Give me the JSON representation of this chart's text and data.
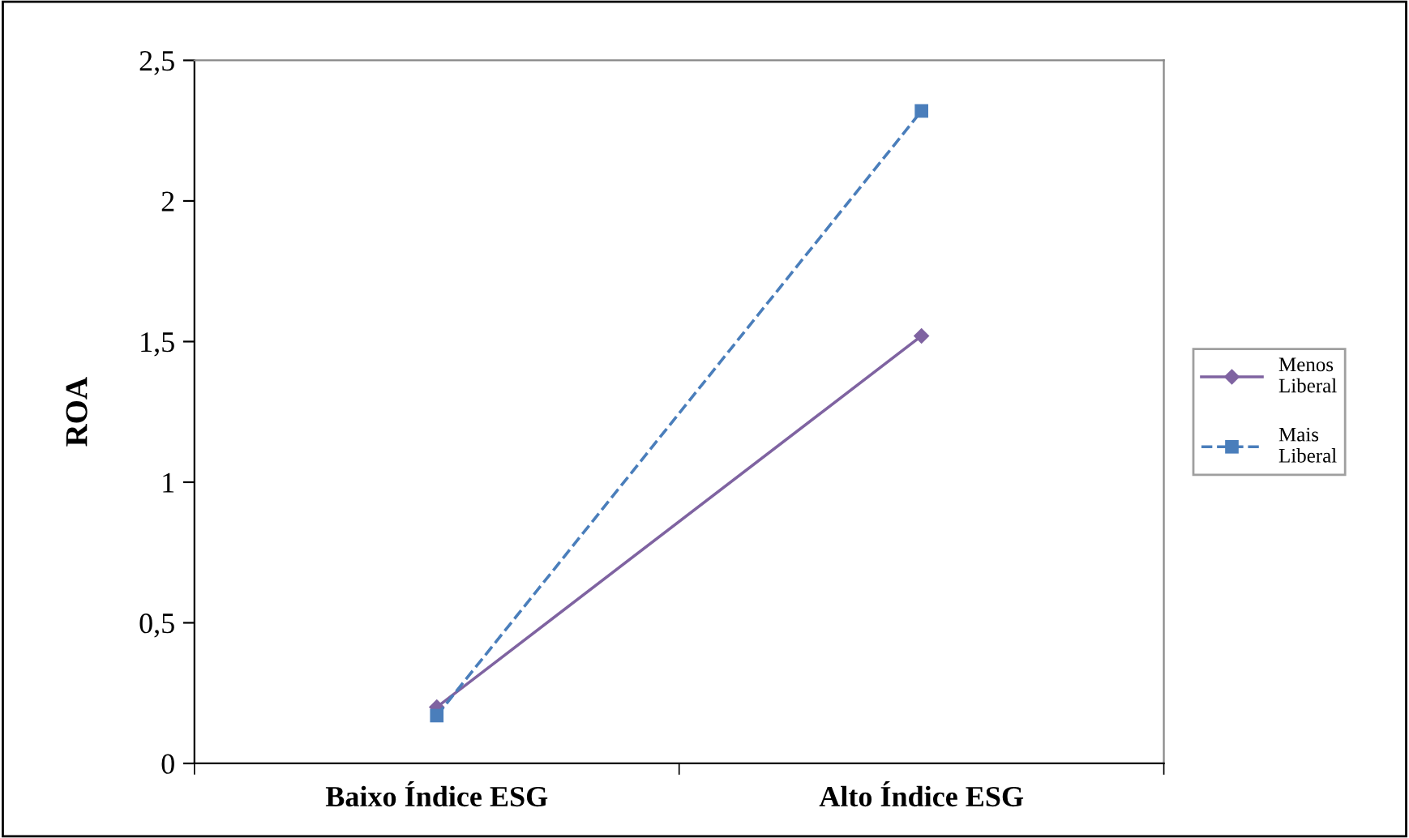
{
  "chart_data": {
    "type": "line",
    "ylabel": "ROA",
    "categories": [
      "Baixo Índice ESG",
      "Alto Índice ESG"
    ],
    "series": [
      {
        "name": "Menos Liberal",
        "color": "#7f63a1",
        "values": [
          0.2,
          1.52
        ],
        "marker": "diamond",
        "line_style": "solid"
      },
      {
        "name": "Mais Liberal",
        "color": "#4a7ebb",
        "values": [
          0.17,
          2.32
        ],
        "marker": "square",
        "line_style": "dashed"
      }
    ],
    "ylim": [
      0,
      2.5
    ],
    "yticks": [
      0,
      {
        "value": 0.5,
        "label": "0,5"
      },
      1,
      {
        "value": 1.5,
        "label": "1,5"
      },
      2,
      {
        "value": 2.5,
        "label": "2,5"
      }
    ],
    "grid": false,
    "legend": "right"
  }
}
